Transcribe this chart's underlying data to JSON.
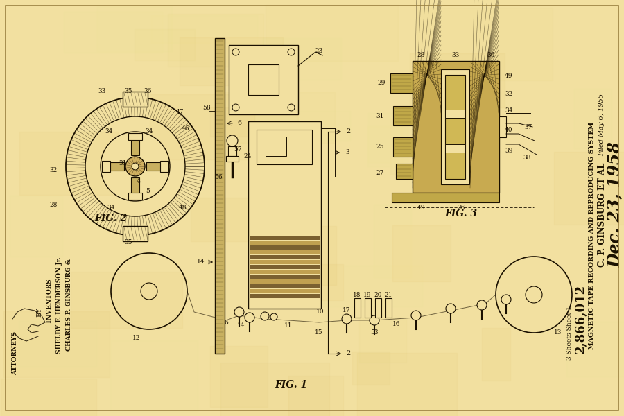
{
  "bg_color": "#f2e0a0",
  "line_color": "#1a1000",
  "title_right": "Dec. 23, 1958",
  "inventor_name": "C. P. GINSBURG ET AL",
  "patent_title": "MAGNETIC TAPE RECORDING AND REPRODUCING SYSTEM",
  "patent_number": "2,866,012",
  "filed_text": "Filed May 6, 1955",
  "sheets_text": "3 Sheets-Sheet 1",
  "fig1_label": "FIG. 1",
  "fig2_label": "FIG. 2",
  "fig3_label": "FIG. 3"
}
